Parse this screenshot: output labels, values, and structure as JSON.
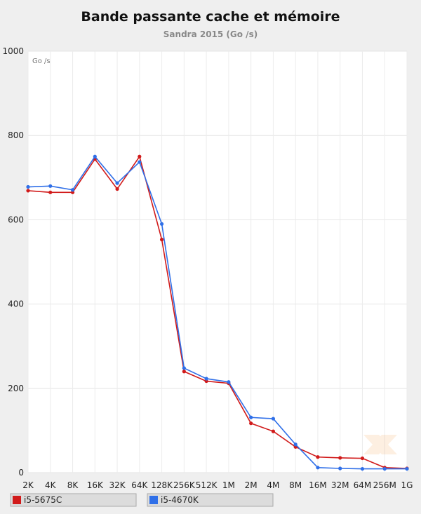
{
  "chart_data": {
    "type": "line",
    "title": "Bande passante cache et mémoire",
    "subtitle": "Sandra 2015 (Go /s)",
    "unit_label": "Go /s",
    "categories": [
      "2K",
      "4K",
      "8K",
      "16K",
      "32K",
      "64K",
      "128K",
      "256K",
      "512K",
      "1M",
      "2M",
      "4M",
      "8M",
      "16M",
      "32M",
      "64M",
      "256M",
      "1G"
    ],
    "ylim": [
      0,
      1000
    ],
    "yticks": [
      0,
      200,
      400,
      600,
      800,
      1000
    ],
    "grid": true,
    "legend_position": "bottom",
    "series": [
      {
        "name": "i5-5675C",
        "color": "#d11a1a",
        "values": [
          669,
          665,
          665,
          744,
          673,
          750,
          553,
          240,
          217,
          212,
          117,
          98,
          61,
          37,
          35,
          34,
          12,
          10
        ]
      },
      {
        "name": "i5-4670K",
        "color": "#2f6fe8",
        "values": [
          678,
          680,
          671,
          750,
          687,
          737,
          590,
          248,
          223,
          215,
          131,
          128,
          67,
          12,
          10,
          9,
          9,
          9
        ]
      }
    ]
  }
}
